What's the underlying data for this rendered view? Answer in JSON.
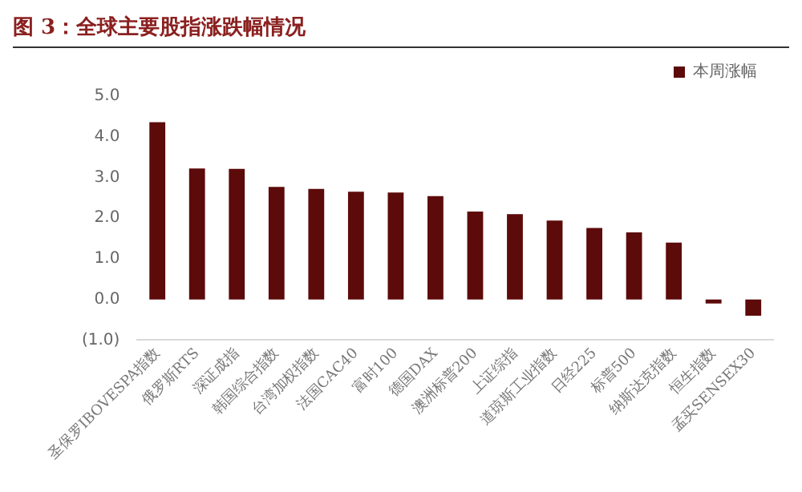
{
  "chart_data": {
    "type": "bar",
    "title": "图 3：全球主要股指涨跌幅情况",
    "categories": [
      "圣保罗IBOVESPA指数",
      "俄罗斯RTS",
      "深证成指",
      "韩国综合指数",
      "台湾加权指数",
      "法国CAC40",
      "富时100",
      "德国DAX",
      "澳洲标普200",
      "上证综指",
      "道琼斯工业指数",
      "日经225",
      "标普500",
      "纳斯达克指数",
      "恒生指数",
      "孟买SENSEX30"
    ],
    "series": [
      {
        "name": "本周涨幅",
        "color": "#5c0a0a",
        "values": [
          4.36,
          3.22,
          3.21,
          2.77,
          2.72,
          2.65,
          2.63,
          2.54,
          2.16,
          2.1,
          1.94,
          1.76,
          1.65,
          1.4,
          -0.1,
          -0.4
        ]
      }
    ],
    "ylim": [
      -1,
      5
    ],
    "yticks": [
      {
        "value": -1,
        "label": "(1.0)"
      },
      {
        "value": 0,
        "label": "0.0"
      },
      {
        "value": 1,
        "label": "1.0"
      },
      {
        "value": 2,
        "label": "2.0"
      },
      {
        "value": 3,
        "label": "3.0"
      },
      {
        "value": 4,
        "label": "4.0"
      },
      {
        "value": 5,
        "label": "5.0"
      }
    ],
    "grid": false,
    "legend": "top right"
  }
}
